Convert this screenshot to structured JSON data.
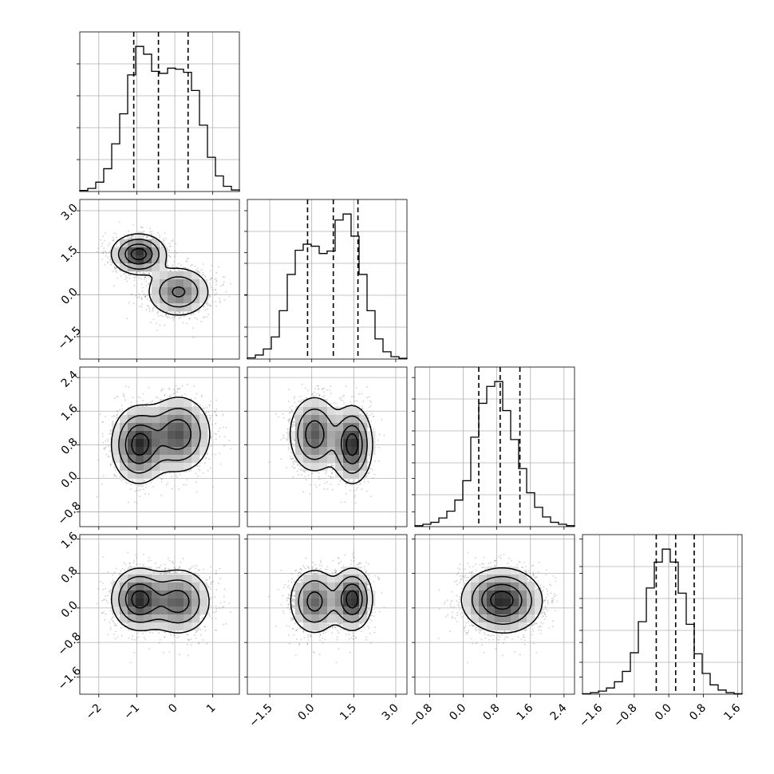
{
  "chart_data": {
    "type": "corner",
    "parameters": [
      {
        "range": [
          -2.5,
          1.7
        ],
        "ticks": [
          -2,
          -1,
          0,
          1
        ],
        "tick_labels": [
          "−2",
          "−1",
          "0",
          "1"
        ],
        "quantiles": [
          -1.08,
          -0.43,
          0.35
        ],
        "hist_counts": [
          2,
          6,
          18,
          44,
          92,
          150,
          225,
          280,
          265,
          232,
          228,
          238,
          236,
          230,
          195,
          128,
          66,
          30,
          10,
          3
        ]
      },
      {
        "range": [
          -2.3,
          3.4
        ],
        "ticks": [
          -1.5,
          0.0,
          1.5,
          3.0
        ],
        "tick_labels": [
          "−1.5",
          "0.0",
          "1.5",
          "3.0"
        ],
        "quantiles": [
          -0.15,
          0.77,
          1.65
        ],
        "hist_counts": [
          3,
          10,
          25,
          55,
          120,
          210,
          270,
          285,
          280,
          262,
          268,
          345,
          360,
          305,
          210,
          120,
          50,
          18,
          6,
          2
        ]
      },
      {
        "range": [
          -1.15,
          2.65
        ],
        "ticks": [
          -0.8,
          0.0,
          0.8,
          1.6,
          2.4
        ],
        "tick_labels": [
          "−0.8",
          "0.0",
          "0.8",
          "1.6",
          "2.4"
        ],
        "quantiles": [
          0.37,
          0.88,
          1.35
        ],
        "hist_counts": [
          2,
          5,
          9,
          18,
          32,
          55,
          95,
          185,
          255,
          290,
          300,
          240,
          180,
          120,
          70,
          40,
          20,
          9,
          5,
          2
        ]
      },
      {
        "range": [
          -2.0,
          1.7
        ],
        "ticks": [
          -1.6,
          -0.8,
          0.0,
          0.8,
          1.6
        ],
        "tick_labels": [
          "−1.6",
          "−0.8",
          "0.0",
          "0.8",
          "1.6"
        ],
        "quantiles": [
          -0.29,
          0.16,
          0.59
        ],
        "hist_counts": [
          1,
          3,
          6,
          12,
          24,
          44,
          80,
          140,
          205,
          255,
          280,
          255,
          195,
          135,
          78,
          40,
          18,
          8,
          3,
          1
        ]
      }
    ],
    "mixture": {
      "weights": [
        0.5,
        0.5
      ],
      "means": [
        [
          -0.95,
          1.45,
          0.8,
          0.2
        ],
        [
          0.1,
          0.1,
          1.05,
          0.15
        ]
      ],
      "sds": [
        [
          0.35,
          0.35,
          0.45,
          0.35
        ],
        [
          0.42,
          0.45,
          0.45,
          0.38
        ]
      ]
    },
    "title": "",
    "xlabel": "",
    "ylabel": "",
    "grid": true,
    "legend": "none"
  }
}
